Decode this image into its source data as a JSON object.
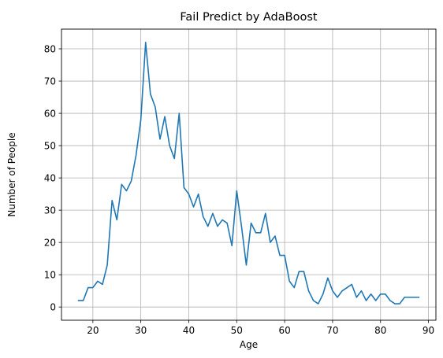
{
  "chart_data": {
    "type": "line",
    "title": "Fail Predict by AdaBoost",
    "xlabel": "Age",
    "ylabel": "Number of People",
    "xlim": [
      13.45,
      91.55
    ],
    "ylim": [
      -4.1,
      86.1
    ],
    "xticks": [
      20,
      30,
      40,
      50,
      60,
      70,
      80,
      90
    ],
    "yticks": [
      0,
      10,
      20,
      30,
      40,
      50,
      60,
      70,
      80
    ],
    "grid": true,
    "legend": "none",
    "colors": {
      "line": "#1f77b4",
      "grid": "#b0b0b0",
      "axes": "#000000"
    },
    "series": [
      {
        "x": [
          17,
          18,
          19,
          20,
          21,
          22,
          23,
          24,
          25,
          26,
          27,
          28,
          29,
          30,
          31,
          32,
          33,
          34,
          35,
          36,
          37,
          38,
          39,
          40,
          41,
          42,
          43,
          44,
          45,
          46,
          47,
          48,
          49,
          50,
          51,
          52,
          53,
          54,
          55,
          56,
          57,
          58,
          59,
          60,
          61,
          62,
          63,
          64,
          65,
          66,
          67,
          68,
          69,
          70,
          71,
          72,
          73,
          74,
          75,
          76,
          77,
          78,
          79,
          80,
          81,
          82,
          83,
          84,
          85,
          86,
          87,
          88
        ],
        "values": [
          2,
          2,
          6,
          6,
          8,
          7,
          13,
          33,
          27,
          38,
          36,
          39,
          47,
          58,
          82,
          66,
          62,
          52,
          59,
          50,
          46,
          60,
          37,
          35,
          31,
          35,
          28,
          25,
          29,
          25,
          27,
          26,
          19,
          36,
          25,
          13,
          26,
          23,
          23,
          29,
          20,
          22,
          16,
          16,
          8,
          6,
          11,
          11,
          5,
          2,
          1,
          4,
          9,
          5,
          3,
          5,
          6,
          7,
          3,
          5,
          2,
          4,
          2,
          4,
          4,
          2,
          1,
          1,
          3,
          3,
          3,
          3
        ]
      }
    ]
  }
}
